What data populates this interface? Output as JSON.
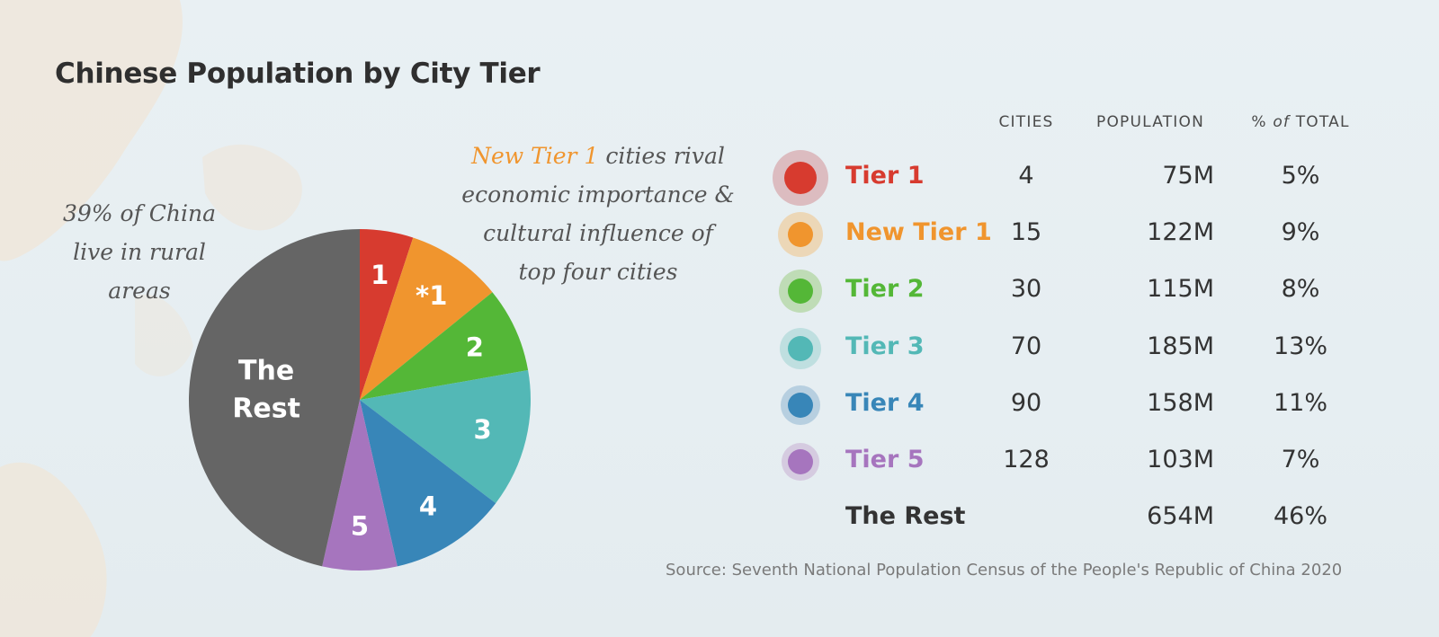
{
  "title": "Chinese Population by City Tier",
  "annotations": {
    "rural": [
      "39% of China",
      "live in rural",
      "areas"
    ],
    "new_tier_highlight": "New Tier 1",
    "new_tier_line1_rest": " cities rival",
    "new_tier_lines": [
      "economic importance &",
      "cultural influence of",
      "top four cities"
    ]
  },
  "table": {
    "headers": {
      "cities": "CITIES",
      "population": "POPULATION",
      "pct_prefix": "% ",
      "pct_of": "of",
      "pct_suffix": " TOTAL"
    },
    "rows": [
      {
        "label": "Tier 1",
        "cities": "4",
        "population": "75M",
        "pct": "5%",
        "color": "#d73b2f",
        "halo": "#dcbcc0"
      },
      {
        "label": "New Tier 1",
        "cities": "15",
        "population": "122M",
        "pct": "9%",
        "color": "#f0952e",
        "halo": "#ecd7b7"
      },
      {
        "label": "Tier 2",
        "cities": "30",
        "population": "115M",
        "pct": "8%",
        "color": "#54b737",
        "halo": "#bfdcb6"
      },
      {
        "label": "Tier 3",
        "cities": "70",
        "population": "185M",
        "pct": "13%",
        "color": "#53b8b6",
        "halo": "#bfdfe0"
      },
      {
        "label": "Tier 4",
        "cities": "90",
        "population": "158M",
        "pct": "11%",
        "color": "#3886b8",
        "halo": "#b7cfe0"
      },
      {
        "label": "Tier 5",
        "cities": "128",
        "population": "103M",
        "pct": "7%",
        "color": "#a675be",
        "halo": "#d5cbe0"
      },
      {
        "label": "The Rest",
        "cities": "",
        "population": "654M",
        "pct": "46%",
        "color": "#333333",
        "halo": ""
      }
    ]
  },
  "source": "Source: Seventh National Population Census of the People's Republic of China 2020",
  "chart_data": {
    "type": "pie",
    "title": "Chinese Population by City Tier",
    "slices": [
      {
        "label": "1",
        "value": 5,
        "color": "#d73b2f"
      },
      {
        "label": "*1",
        "value": 9,
        "color": "#f0952e"
      },
      {
        "label": "2",
        "value": 8,
        "color": "#54b737"
      },
      {
        "label": "3",
        "value": 13,
        "color": "#53b8b6"
      },
      {
        "label": "4",
        "value": 11,
        "color": "#3886b8"
      },
      {
        "label": "5",
        "value": 7,
        "color": "#a675be"
      },
      {
        "label": "The Rest",
        "value": 46,
        "color": "#656565"
      }
    ]
  }
}
